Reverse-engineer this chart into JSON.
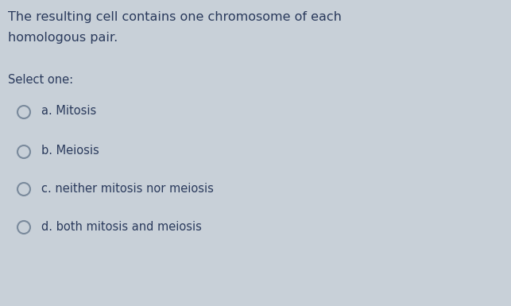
{
  "background_color": "#c8d0d8",
  "question_line1": "The resulting cell contains one chromosome of each",
  "question_line2": "homologous pair.",
  "select_one_label": "Select one:",
  "options": [
    "a. Mitosis",
    "b. Meiosis",
    "c. neither mitosis nor meiosis",
    "d. both mitosis and meiosis"
  ],
  "text_color": "#2a3a5c",
  "circle_color": "#7a8a9c",
  "question_fontsize": 11.5,
  "select_fontsize": 10.5,
  "option_fontsize": 10.5,
  "fig_width": 6.43,
  "fig_height": 3.85,
  "dpi": 100
}
